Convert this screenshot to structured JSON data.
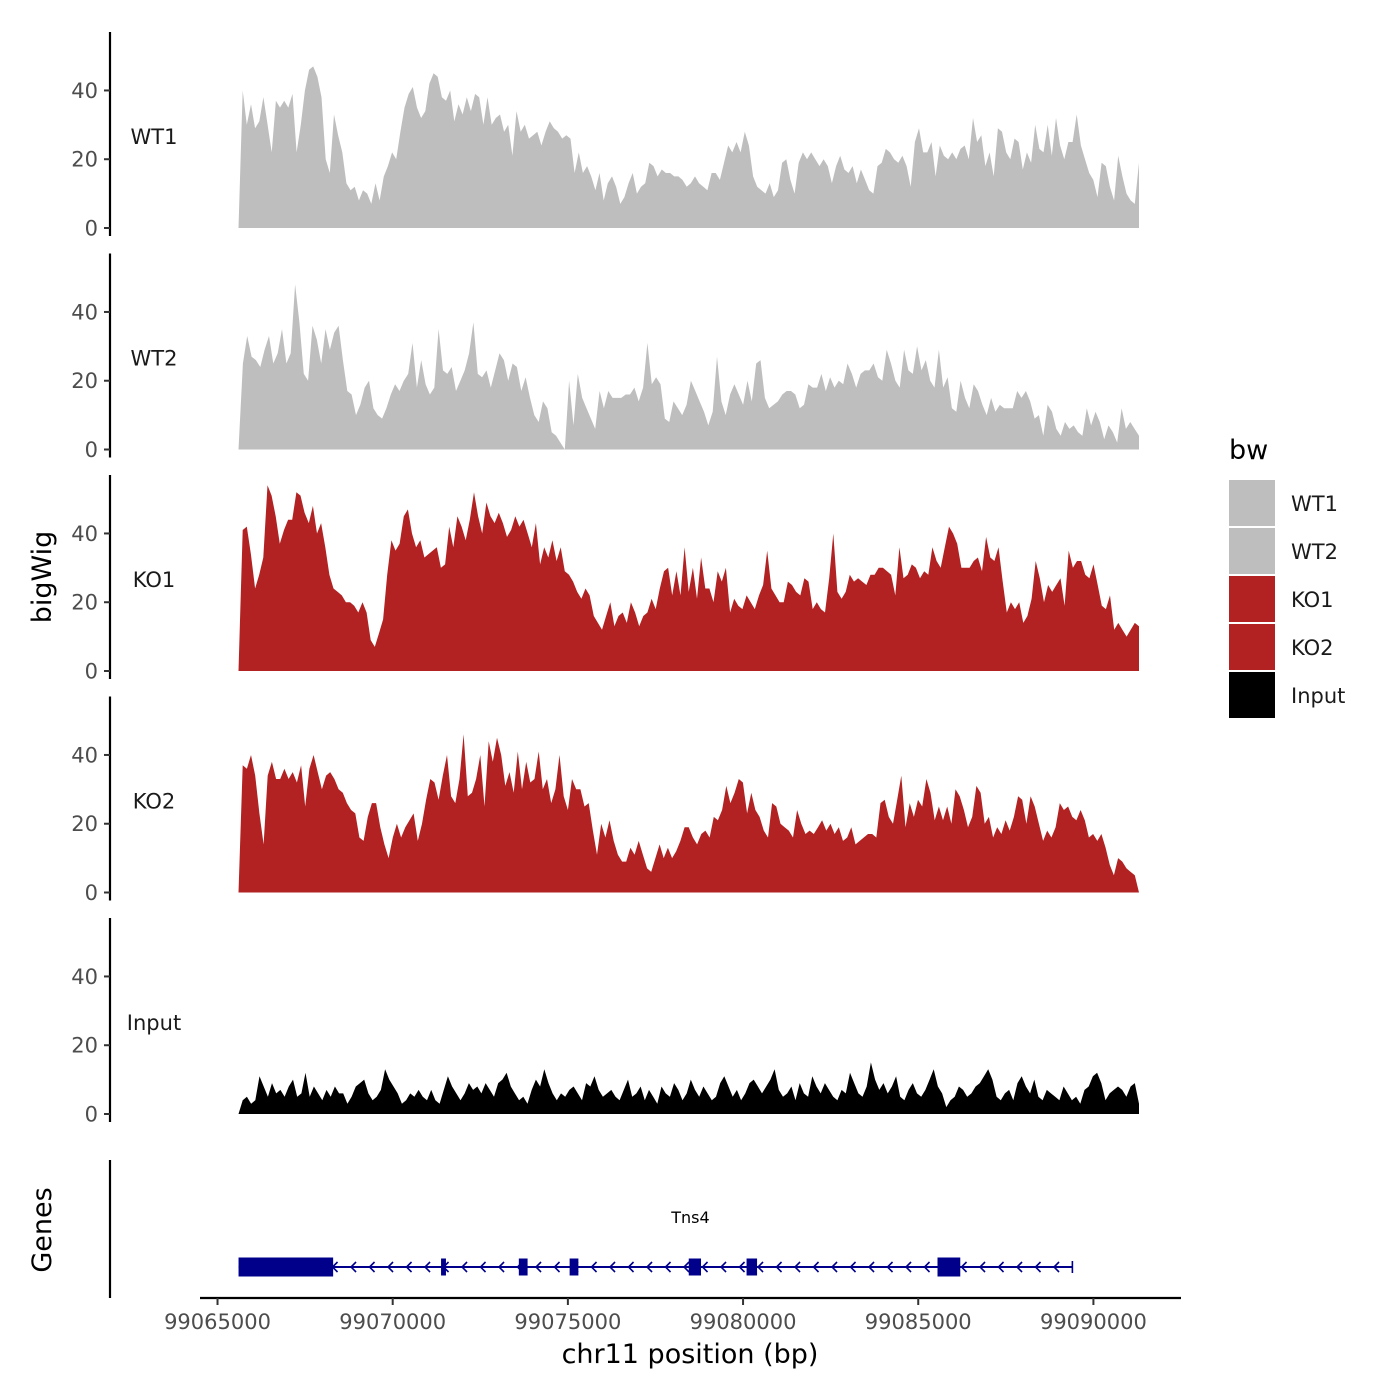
{
  "chart_data": {
    "type": "area",
    "xlabel": "chr11 position (bp)",
    "ylabel": "bigWig",
    "genes_label": "Genes",
    "chromosome": "chr11",
    "xlim": [
      99064500,
      99092500
    ],
    "x_ticks": [
      99065000,
      99070000,
      99075000,
      99080000,
      99085000,
      99090000
    ],
    "x_tick_labels": [
      "99065000",
      "99070000",
      "99075000",
      "99080000",
      "99085000",
      "99090000"
    ],
    "ylim": [
      0,
      57
    ],
    "y_ticks": [
      0,
      20,
      40
    ],
    "y_tick_labels": [
      "0",
      "20",
      "40"
    ],
    "legend": {
      "title": "bw",
      "entries": [
        {
          "label": "WT1",
          "color": "#bebebe"
        },
        {
          "label": "WT2",
          "color": "#bebebe"
        },
        {
          "label": "KO1",
          "color": "#b22222"
        },
        {
          "label": "KO2",
          "color": "#b22222"
        },
        {
          "label": "Input",
          "color": "#000000"
        }
      ]
    },
    "tracks": [
      {
        "name": "WT1",
        "color": "#bebebe",
        "x_start": 99065600,
        "x_end": 99091300,
        "values": [
          0,
          40,
          30,
          36,
          29,
          31,
          38,
          30,
          22,
          37,
          35,
          37,
          35,
          39,
          22,
          30,
          40,
          46,
          47,
          44,
          38,
          20,
          16,
          33,
          27,
          22,
          13,
          11,
          12,
          8,
          11,
          10,
          7,
          13,
          8,
          15,
          18,
          22,
          20,
          28,
          35,
          39,
          41,
          35,
          32,
          34,
          42,
          45,
          44,
          38,
          37,
          40,
          31,
          36,
          33,
          38,
          34,
          39,
          38,
          30,
          38,
          30,
          32,
          33,
          28,
          30,
          21,
          34,
          28,
          30,
          26,
          27,
          28,
          24,
          28,
          31,
          29,
          28,
          26,
          27,
          26,
          16,
          22,
          16,
          18,
          15,
          11,
          16,
          8,
          13,
          15,
          12,
          7,
          9,
          13,
          16,
          10,
          12,
          13,
          19,
          18,
          15,
          17,
          16,
          16,
          15,
          15,
          14,
          12,
          13,
          15,
          13,
          12,
          11,
          16,
          16,
          14,
          19,
          24,
          22,
          25,
          22,
          28,
          24,
          15,
          12,
          11,
          10,
          13,
          9,
          11,
          19,
          20,
          14,
          10,
          19,
          22,
          20,
          22,
          20,
          18,
          20,
          18,
          13,
          18,
          21,
          17,
          16,
          18,
          13,
          17,
          14,
          11,
          10,
          18,
          19,
          23,
          22,
          20,
          19,
          21,
          18,
          12,
          25,
          29,
          22,
          22,
          25,
          15,
          24,
          21,
          20,
          22,
          20,
          23,
          24,
          20,
          32,
          25,
          27,
          18,
          22,
          15,
          29,
          28,
          22,
          20,
          26,
          25,
          17,
          22,
          19,
          30,
          23,
          22,
          30,
          21,
          32,
          24,
          20,
          25,
          25,
          33,
          24,
          20,
          16,
          14,
          9,
          19,
          18,
          12,
          8,
          21,
          15,
          10,
          8,
          7,
          19
        ]
      },
      {
        "name": "WT2",
        "color": "#bebebe",
        "x_start": 99065600,
        "x_end": 99091300,
        "values": [
          0,
          25,
          33,
          27,
          26,
          24,
          29,
          33,
          25,
          28,
          35,
          25,
          28,
          48,
          37,
          22,
          20,
          36,
          32,
          25,
          35,
          29,
          34,
          36,
          26,
          17,
          16,
          10,
          13,
          18,
          20,
          12,
          10,
          9,
          12,
          16,
          19,
          17,
          20,
          22,
          31,
          18,
          26,
          19,
          16,
          18,
          35,
          23,
          22,
          24,
          17,
          20,
          23,
          28,
          37,
          22,
          21,
          23,
          18,
          23,
          28,
          26,
          20,
          25,
          24,
          17,
          21,
          15,
          10,
          8,
          14,
          12,
          5,
          4,
          2,
          0,
          20,
          7,
          22,
          15,
          12,
          9,
          6,
          17,
          12,
          17,
          15,
          15,
          15,
          16,
          16,
          18,
          14,
          18,
          31,
          19,
          21,
          19,
          9,
          8,
          14,
          12,
          10,
          13,
          20,
          17,
          14,
          11,
          7,
          11,
          27,
          14,
          10,
          16,
          19,
          16,
          13,
          20,
          14,
          25,
          26,
          15,
          12,
          13,
          14,
          16,
          17,
          17,
          16,
          12,
          13,
          19,
          18,
          18,
          22,
          17,
          21,
          18,
          20,
          19,
          25,
          22,
          18,
          22,
          23,
          23,
          25,
          21,
          20,
          29,
          25,
          20,
          18,
          29,
          23,
          22,
          30,
          23,
          26,
          20,
          18,
          29,
          18,
          21,
          12,
          11,
          20,
          15,
          12,
          19,
          17,
          13,
          10,
          15,
          11,
          13,
          12,
          12,
          12,
          17,
          15,
          17,
          14,
          9,
          10,
          4,
          13,
          11,
          6,
          4,
          8,
          6,
          7,
          5,
          4,
          12,
          7,
          11,
          8,
          3,
          7,
          5,
          2,
          12,
          6,
          8,
          6,
          4
        ]
      },
      {
        "name": "KO1",
        "color": "#b22222",
        "x_start": 99065600,
        "x_end": 99091300,
        "values": [
          0,
          41,
          42,
          34,
          24,
          28,
          33,
          54,
          51,
          45,
          37,
          41,
          44,
          44,
          52,
          51,
          46,
          43,
          48,
          40,
          43,
          36,
          28,
          24,
          23,
          22,
          20,
          20,
          19,
          17,
          20,
          17,
          9,
          7,
          11,
          15,
          28,
          38,
          35,
          37,
          45,
          47,
          40,
          36,
          38,
          33,
          34,
          35,
          36,
          30,
          31,
          42,
          36,
          45,
          42,
          38,
          44,
          52,
          45,
          40,
          49,
          45,
          43,
          46,
          43,
          39,
          41,
          45,
          42,
          44,
          40,
          36,
          43,
          31,
          36,
          33,
          38,
          32,
          36,
          29,
          28,
          26,
          23,
          21,
          24,
          22,
          16,
          14,
          12,
          16,
          20,
          13,
          16,
          17,
          14,
          20,
          17,
          13,
          16,
          17,
          21,
          18,
          24,
          29,
          30,
          22,
          29,
          22,
          36,
          23,
          30,
          21,
          33,
          24,
          24,
          20,
          29,
          26,
          30,
          17,
          21,
          19,
          18,
          22,
          20,
          18,
          22,
          25,
          35,
          24,
          22,
          20,
          20,
          26,
          25,
          23,
          22,
          27,
          26,
          18,
          20,
          18,
          17,
          27,
          40,
          23,
          21,
          23,
          28,
          26,
          27,
          26,
          25,
          28,
          28,
          30,
          30,
          29,
          28,
          22,
          36,
          27,
          28,
          31,
          30,
          27,
          29,
          28,
          36,
          32,
          30,
          36,
          42,
          40,
          37,
          30,
          30,
          30,
          32,
          33,
          29,
          39,
          33,
          32,
          36,
          26,
          17,
          20,
          18,
          20,
          14,
          16,
          21,
          32,
          27,
          20,
          25,
          23,
          25,
          27,
          19,
          35,
          30,
          32,
          32,
          28,
          27,
          31,
          25,
          19,
          18,
          22,
          12,
          14,
          12,
          10,
          12,
          14,
          13
        ]
      },
      {
        "name": "KO2",
        "color": "#b22222",
        "x_start": 99065600,
        "x_end": 99091300,
        "values": [
          0,
          37,
          36,
          40,
          34,
          23,
          14,
          34,
          38,
          33,
          33,
          36,
          33,
          35,
          32,
          37,
          25,
          36,
          40,
          35,
          30,
          34,
          35,
          33,
          30,
          29,
          26,
          24,
          23,
          16,
          15,
          22,
          26,
          26,
          19,
          14,
          10,
          16,
          20,
          16,
          19,
          21,
          23,
          15,
          20,
          27,
          33,
          32,
          27,
          34,
          40,
          28,
          26,
          33,
          46,
          28,
          29,
          33,
          40,
          25,
          44,
          38,
          45,
          40,
          31,
          35,
          29,
          41,
          30,
          38,
          32,
          33,
          41,
          30,
          33,
          26,
          30,
          40,
          28,
          24,
          33,
          30,
          30,
          25,
          26,
          18,
          11,
          20,
          16,
          21,
          15,
          11,
          9,
          9,
          13,
          11,
          15,
          11,
          7,
          6,
          10,
          14,
          10,
          13,
          10,
          12,
          15,
          19,
          19,
          16,
          14,
          17,
          18,
          16,
          22,
          21,
          24,
          31,
          26,
          29,
          33,
          32,
          23,
          29,
          24,
          22,
          18,
          16,
          26,
          25,
          20,
          19,
          18,
          16,
          24,
          20,
          17,
          18,
          17,
          19,
          21,
          18,
          20,
          17,
          19,
          15,
          16,
          19,
          14,
          15,
          16,
          17,
          17,
          16,
          26,
          27,
          22,
          20,
          27,
          34,
          19,
          26,
          22,
          27,
          25,
          33,
          29,
          21,
          25,
          21,
          25,
          20,
          30,
          28,
          24,
          19,
          22,
          31,
          29,
          20,
          22,
          16,
          19,
          17,
          21,
          18,
          22,
          28,
          27,
          20,
          28,
          25,
          20,
          15,
          18,
          16,
          19,
          26,
          24,
          25,
          22,
          21,
          24,
          21,
          16,
          17,
          15,
          17,
          13,
          8,
          5,
          10,
          9,
          7,
          6,
          5,
          0
        ]
      },
      {
        "name": "Input",
        "color": "#000000",
        "x_start": 99065600,
        "x_end": 99091300,
        "values": [
          0,
          4,
          5,
          3,
          4,
          11,
          8,
          5,
          9,
          6,
          7,
          5,
          8,
          10,
          5,
          6,
          12,
          5,
          8,
          6,
          4,
          7,
          5,
          8,
          6,
          6,
          3,
          5,
          8,
          9,
          10,
          6,
          4,
          5,
          7,
          13,
          10,
          8,
          6,
          3,
          4,
          6,
          5,
          7,
          5,
          4,
          7,
          4,
          3,
          7,
          11,
          8,
          6,
          4,
          6,
          9,
          7,
          8,
          6,
          9,
          7,
          5,
          9,
          10,
          12,
          8,
          6,
          4,
          5,
          3,
          7,
          10,
          8,
          13,
          9,
          6,
          4,
          6,
          5,
          7,
          8,
          6,
          4,
          9,
          8,
          11,
          7,
          5,
          6,
          7,
          5,
          4,
          7,
          10,
          5,
          6,
          8,
          4,
          7,
          5,
          3,
          8,
          6,
          5,
          9,
          7,
          4,
          6,
          10,
          7,
          5,
          8,
          6,
          4,
          5,
          9,
          11,
          8,
          5,
          7,
          4,
          6,
          9,
          10,
          8,
          6,
          8,
          10,
          13,
          7,
          5,
          6,
          8,
          4,
          9,
          6,
          5,
          11,
          8,
          6,
          9,
          7,
          5,
          4,
          7,
          6,
          12,
          9,
          6,
          5,
          8,
          15,
          10,
          7,
          9,
          6,
          8,
          11,
          5,
          4,
          7,
          9,
          6,
          5,
          7,
          10,
          13,
          8,
          6,
          2,
          4,
          5,
          8,
          7,
          5,
          6,
          8,
          9,
          11,
          13,
          10,
          5,
          4,
          6,
          7,
          4,
          9,
          11,
          8,
          6,
          10,
          5,
          4,
          7,
          6,
          5,
          4,
          8,
          6,
          4,
          5,
          3,
          7,
          8,
          11,
          12,
          9,
          4,
          6,
          7,
          8,
          7,
          5,
          8,
          9,
          3
        ]
      }
    ],
    "gene": {
      "name": "Tns4",
      "strand": "-",
      "start": 99065600,
      "end": 99089400,
      "exons": [
        [
          99065600,
          99068300
        ],
        [
          99071380,
          99071520
        ],
        [
          99073600,
          99073850
        ],
        [
          99075050,
          99075300
        ],
        [
          99078450,
          99078800
        ],
        [
          99080100,
          99080400
        ],
        [
          99085550,
          99086200
        ]
      ],
      "color": "#00008b"
    }
  }
}
